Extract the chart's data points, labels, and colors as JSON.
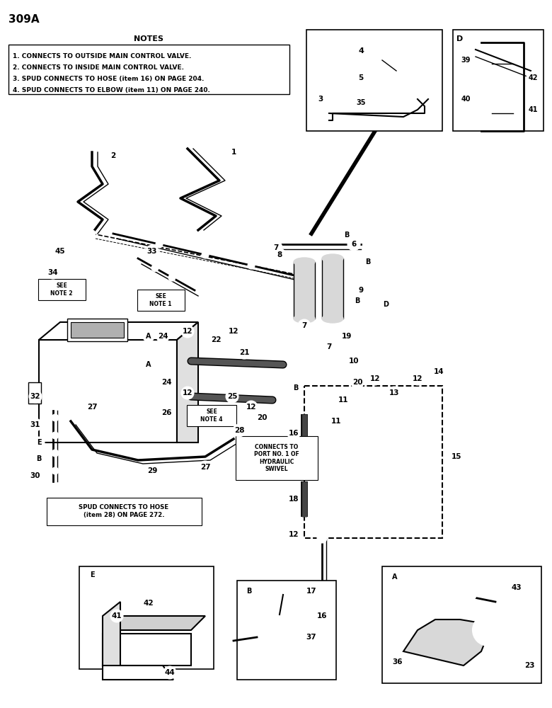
{
  "title": "309A",
  "bg": "#ffffff",
  "notes_title": "NOTES",
  "notes": [
    "1. CONNECTS TO OUTSIDE MAIN CONTROL VALVE.",
    "2. CONNECTS TO INSIDE MAIN CONTROL VALVE.",
    "3. SPUD CONNECTS TO HOSE (item 16) ON PAGE 204.",
    "4. SPUD CONNECTS TO ELBOW (item 11) ON PAGE 240."
  ],
  "fig_width": 7.8,
  "fig_height": 10.0,
  "dpi": 100
}
